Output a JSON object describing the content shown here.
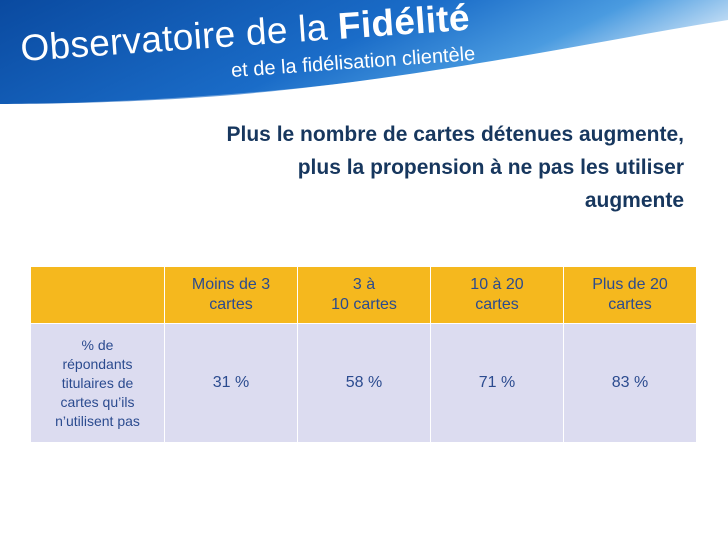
{
  "header": {
    "title_part1": "Observatoire de la ",
    "title_part2": "Fidélité",
    "subtitle": "et de la fidélisation clientèle"
  },
  "headline": {
    "lines": [
      "Plus le nombre de cartes détenues augmente,",
      "plus la propension à ne pas les utiliser",
      "augmente"
    ]
  },
  "table": {
    "columns": [
      {
        "lines": [
          "",
          ""
        ]
      },
      {
        "lines": [
          "Moins de 3",
          "cartes"
        ]
      },
      {
        "lines": [
          "3 à",
          "10 cartes"
        ]
      },
      {
        "lines": [
          "10 à 20",
          "cartes"
        ]
      },
      {
        "lines": [
          "Plus de 20",
          "cartes"
        ]
      }
    ],
    "row_label": [
      "% de",
      "répondants",
      "titulaires de",
      "cartes qu’ils",
      "n’utilisent pas"
    ],
    "values": [
      "31 %",
      "58 %",
      "71 %",
      "83 %"
    ]
  },
  "colors": {
    "banner_blue": "#1660b8",
    "banner_dark": "#0a3f8a",
    "headline": "#17375e",
    "header_row": "#f5b81e",
    "body_row": "#dcdcf0",
    "cell_text": "#2b4b8f"
  }
}
